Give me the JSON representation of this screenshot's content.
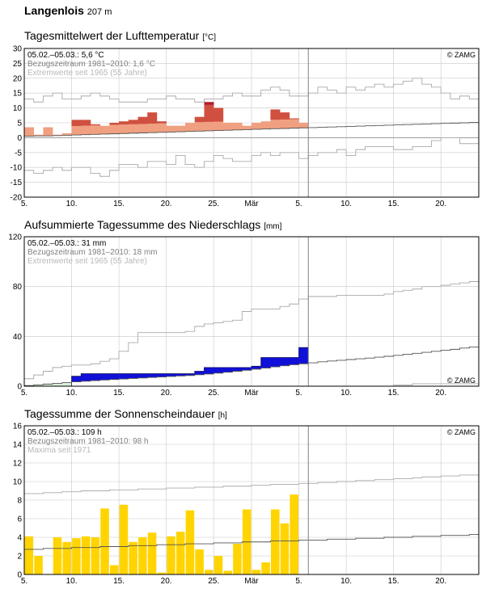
{
  "station": {
    "name": "Langenlois",
    "altitude": "207 m"
  },
  "colors": {
    "temp_above": "#f0a080",
    "temp_extreme": "#d05040",
    "temp_record": "#b01e2e",
    "precip_surplus": "#1010d8",
    "precip_deficit": "#d8f0d8",
    "sun": "#ffd400",
    "ref_line": "#555555",
    "extreme_line": "#aaaaaa",
    "grid": "#c8c8c8",
    "today_line": "#808080"
  },
  "chart_data": [
    {
      "type": "bar",
      "title": "Tagesmittelwert der Lufttemperatur",
      "unit": "[°C]",
      "summary": "05.02.–05.03.: 5,6 °C",
      "reference": "Bezugszeitraum 1981–2010: 1,6 °C",
      "extremes_note": "Extremwerte seit 1965 (55 Jahre)",
      "copyright": "© ZAMG",
      "ylim": [
        -20,
        30
      ],
      "yticks": [
        -20,
        -15,
        -10,
        -5,
        0,
        5,
        10,
        15,
        20,
        25,
        30
      ],
      "x_dates": [
        "05.02.",
        "06.02.",
        "07.02.",
        "08.02.",
        "09.02.",
        "10.02.",
        "11.02.",
        "12.02.",
        "13.02.",
        "14.02.",
        "15.02.",
        "16.02.",
        "17.02.",
        "18.02.",
        "19.02.",
        "20.02.",
        "21.02.",
        "22.02.",
        "23.02.",
        "24.02.",
        "25.02.",
        "26.02.",
        "27.02.",
        "28.02.",
        "29.02.",
        "01.03.",
        "02.03.",
        "03.03.",
        "04.03.",
        "05.03."
      ],
      "daily_mean": [
        3.5,
        1.0,
        3.5,
        1.0,
        1.5,
        6.0,
        6.0,
        4.5,
        4.0,
        5.0,
        5.5,
        6.0,
        7.0,
        8.5,
        5.5,
        4.0,
        4.0,
        5.0,
        7.0,
        12.0,
        10.0,
        5.0,
        5.0,
        4.0,
        5.0,
        5.5,
        9.5,
        8.5,
        6.5,
        5.0
      ],
      "normal": [
        0.5,
        0.6,
        0.6,
        0.7,
        0.8,
        0.9,
        1.0,
        1.1,
        1.2,
        1.3,
        1.4,
        1.5,
        1.6,
        1.7,
        1.8,
        1.9,
        2.0,
        2.1,
        2.2,
        2.3,
        2.4,
        2.5,
        2.6,
        2.7,
        2.8,
        2.9,
        3.0,
        3.1,
        3.2,
        3.3,
        3.4,
        3.5,
        3.6,
        3.7,
        3.8,
        3.9,
        4.0,
        4.1,
        4.2,
        4.3,
        4.4,
        4.5,
        4.6,
        4.7,
        4.8,
        4.9,
        5.0,
        5.1
      ],
      "record_max": [
        13,
        12,
        14,
        15,
        13,
        13,
        14,
        15,
        14,
        13,
        12,
        12,
        12,
        13,
        13,
        14,
        13,
        13,
        12,
        13,
        13,
        14,
        15,
        14,
        14,
        16,
        17,
        16,
        14,
        14,
        15,
        17,
        16,
        15,
        17,
        16,
        17,
        18,
        17,
        18,
        19,
        20,
        18,
        17,
        15,
        13,
        14,
        13
      ],
      "record_min": [
        -11,
        -12,
        -11,
        -10,
        -11,
        -10,
        -10,
        -12,
        -13,
        -11,
        -9,
        -9,
        -10,
        -8,
        -8,
        -9,
        -6,
        -9,
        -10,
        -8,
        -6,
        -7,
        -8,
        -8,
        -6,
        -5,
        -6,
        -5,
        -5,
        -7,
        -6,
        -5,
        -5,
        -4,
        -6,
        -4,
        -3,
        -3,
        -3,
        -4,
        -4,
        -3,
        -3,
        -1,
        0,
        0,
        -2,
        -2
      ],
      "x_tick_labels": [
        "5.",
        "10.",
        "15.",
        "20.",
        "25.",
        "Mär",
        "5.",
        "10.",
        "15.",
        "20."
      ]
    },
    {
      "type": "area",
      "title": "Aufsummierte Tagessumme des Niederschlags",
      "unit": "[mm]",
      "summary": "05.02.–05.03.: 31 mm",
      "reference": "Bezugszeitraum 1981–2010: 18 mm",
      "extremes_note": "Extremwerte seit 1965 (55 Jahre)",
      "copyright": "© ZAMG",
      "ylim": [
        0,
        120
      ],
      "yticks": [
        0,
        40,
        80,
        120
      ],
      "cumulative": [
        0,
        0,
        0,
        0,
        0,
        8,
        10,
        10,
        10,
        10,
        10,
        10,
        10,
        10,
        10,
        10,
        10,
        10,
        12,
        15,
        15,
        15,
        15,
        15,
        16,
        23,
        23,
        23,
        23,
        31
      ],
      "normal_cumulative": [
        0.5,
        1.1,
        1.7,
        2.3,
        2.9,
        3.5,
        4.0,
        4.5,
        5.0,
        5.4,
        5.8,
        6.2,
        6.6,
        7.0,
        7.4,
        7.8,
        8.2,
        8.6,
        9.2,
        9.8,
        10.5,
        11.2,
        12.0,
        12.8,
        13.7,
        14.6,
        15.5,
        16.4,
        17.2,
        18.0,
        18.8,
        19.6,
        20.2,
        20.8,
        21.4,
        22.0,
        22.6,
        23.3,
        24.0,
        24.8,
        25.6,
        26.4,
        27.2,
        28.0,
        28.8,
        29.6,
        30.6,
        31.5
      ],
      "record_max_cumulative": [
        6,
        9,
        12,
        15,
        16,
        17,
        17,
        18,
        20,
        22,
        28,
        35,
        43,
        43,
        43,
        43,
        43,
        44,
        48,
        50,
        51,
        52,
        53,
        60,
        62,
        62,
        62,
        64,
        66,
        70,
        72,
        72,
        72,
        73,
        73,
        73,
        73,
        73,
        74,
        76,
        77,
        78,
        80,
        80,
        81,
        82,
        83,
        84
      ],
      "record_min_cumulative": [
        0,
        0,
        0,
        0,
        0,
        0,
        0,
        0,
        0,
        0,
        0,
        0,
        0,
        0,
        0,
        0,
        0,
        0,
        0,
        0,
        0,
        0,
        0,
        0,
        0,
        0,
        0,
        0,
        0,
        0,
        0,
        0,
        0,
        0,
        0,
        0,
        0,
        0,
        0,
        1,
        1,
        2,
        2,
        2,
        2,
        2,
        2,
        2
      ],
      "x_tick_labels": [
        "5.",
        "10.",
        "15.",
        "20.",
        "25.",
        "Mär",
        "5.",
        "10.",
        "15.",
        "20."
      ]
    },
    {
      "type": "bar",
      "title": "Tagessumme der Sonnenscheindauer",
      "unit": "[h]",
      "summary": "05.02.–05.03.: 109 h",
      "reference": "Bezugszeitraum 1981–2010: 98 h",
      "extremes_note": "Maxima seit 1971",
      "copyright": "© ZAMG",
      "ylim": [
        0,
        16
      ],
      "yticks": [
        0,
        2,
        4,
        6,
        8,
        10,
        12,
        14,
        16
      ],
      "values": [
        4.1,
        2.0,
        0.0,
        4.0,
        3.5,
        3.9,
        4.1,
        4.0,
        7.1,
        1.0,
        7.5,
        3.5,
        4.0,
        4.5,
        0.2,
        4.1,
        4.6,
        6.9,
        2.7,
        0.5,
        2.0,
        0.4,
        3.3,
        7.0,
        0.5,
        1.3,
        7.0,
        5.5,
        8.6,
        0.0
      ],
      "normal": [
        2.7,
        2.7,
        2.8,
        2.8,
        2.8,
        2.9,
        2.9,
        2.9,
        3.0,
        3.0,
        3.0,
        3.1,
        3.1,
        3.1,
        3.2,
        3.2,
        3.2,
        3.3,
        3.3,
        3.3,
        3.4,
        3.4,
        3.4,
        3.5,
        3.5,
        3.5,
        3.6,
        3.6,
        3.6,
        3.7,
        3.7,
        3.7,
        3.8,
        3.8,
        3.8,
        3.9,
        3.9,
        3.9,
        4.0,
        4.0,
        4.0,
        4.1,
        4.1,
        4.1,
        4.2,
        4.2,
        4.2,
        4.3
      ],
      "record_max": [
        8.7,
        8.7,
        8.8,
        8.8,
        8.9,
        8.9,
        9.0,
        9.0,
        9.0,
        9.1,
        9.1,
        9.1,
        9.2,
        9.2,
        9.2,
        9.3,
        9.3,
        9.3,
        9.4,
        9.4,
        9.4,
        9.5,
        9.5,
        9.5,
        9.6,
        9.6,
        9.7,
        9.7,
        9.7,
        9.8,
        9.8,
        9.9,
        9.9,
        10.0,
        10.0,
        10.1,
        10.1,
        10.2,
        10.2,
        10.3,
        10.3,
        10.4,
        10.5,
        10.5,
        10.6,
        10.6,
        10.7,
        10.7
      ],
      "x_tick_labels": [
        "5.",
        "10.",
        "15.",
        "20.",
        "25.",
        "Mär",
        "5.",
        "10.",
        "15.",
        "20."
      ]
    }
  ]
}
